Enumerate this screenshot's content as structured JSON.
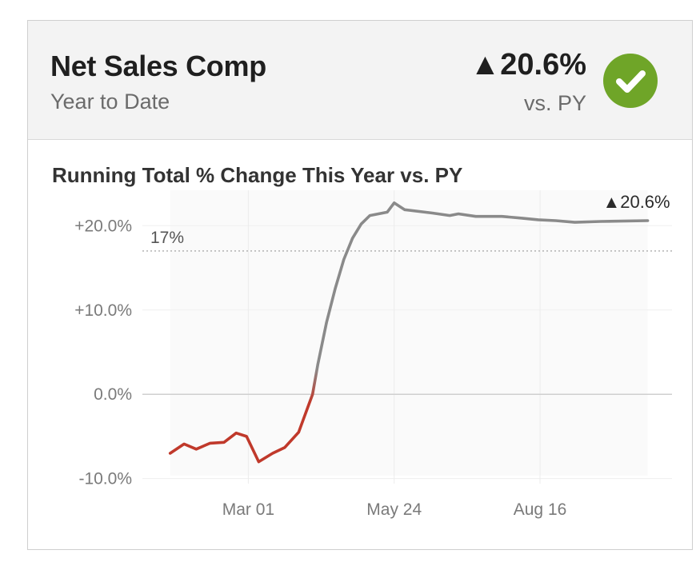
{
  "header": {
    "title": "Net Sales Comp",
    "subtitle": "Year to Date",
    "kpi_value": "▲20.6%",
    "kpi_compare": "vs. PY",
    "status_icon": "check-circle-icon",
    "status_color": "#6fa528"
  },
  "chart_data": {
    "type": "line",
    "title": "Running Total % Change This Year vs. PY",
    "xlabel": "",
    "ylabel": "",
    "x_ticks": [
      {
        "date": "2021-03-01",
        "label": "Mar 01"
      },
      {
        "date": "2021-05-24",
        "label": "May 24"
      },
      {
        "date": "2021-08-16",
        "label": "Aug 16"
      }
    ],
    "y_ticks": [
      {
        "value": 20,
        "label": "+20.0%"
      },
      {
        "value": 10,
        "label": "+10.0%"
      },
      {
        "value": 0,
        "label": "0.0%"
      },
      {
        "value": -10,
        "label": "-10.0%"
      }
    ],
    "xlim": [
      "2020-12-30",
      "2021-10-31"
    ],
    "ylim": [
      -10.6,
      24.2
    ],
    "reference_line": {
      "value": 17,
      "label": "17%"
    },
    "end_label": "▲20.6%",
    "colors": {
      "negative": "#c0392b",
      "positive": "#8a8a8a",
      "reference": "#9a9a9a"
    },
    "series": [
      {
        "points": [
          [
            "2021-01-15",
            -7.0
          ],
          [
            "2021-01-23",
            -5.9
          ],
          [
            "2021-01-30",
            -6.5
          ],
          [
            "2021-02-07",
            -5.8
          ],
          [
            "2021-02-15",
            -5.7
          ],
          [
            "2021-02-22",
            -4.6
          ],
          [
            "2021-02-28",
            -5.0
          ],
          [
            "2021-03-07",
            -8.0
          ],
          [
            "2021-03-15",
            -7.0
          ],
          [
            "2021-03-22",
            -6.3
          ],
          [
            "2021-03-30",
            -4.5
          ],
          [
            "2021-04-07",
            0.0
          ],
          [
            "2021-04-10",
            3.5
          ],
          [
            "2021-04-15",
            8.5
          ],
          [
            "2021-04-20",
            12.5
          ],
          [
            "2021-04-25",
            16.0
          ],
          [
            "2021-04-30",
            18.5
          ],
          [
            "2021-05-05",
            20.2
          ],
          [
            "2021-05-10",
            21.2
          ],
          [
            "2021-05-20",
            21.6
          ],
          [
            "2021-05-24",
            22.7
          ],
          [
            "2021-05-30",
            21.9
          ],
          [
            "2021-06-15",
            21.5
          ],
          [
            "2021-06-25",
            21.2
          ],
          [
            "2021-06-30",
            21.4
          ],
          [
            "2021-07-10",
            21.1
          ],
          [
            "2021-07-25",
            21.1
          ],
          [
            "2021-08-05",
            20.9
          ],
          [
            "2021-08-15",
            20.7
          ],
          [
            "2021-08-25",
            20.6
          ],
          [
            "2021-09-05",
            20.4
          ],
          [
            "2021-09-20",
            20.5
          ],
          [
            "2021-10-17",
            20.6
          ]
        ]
      }
    ]
  }
}
